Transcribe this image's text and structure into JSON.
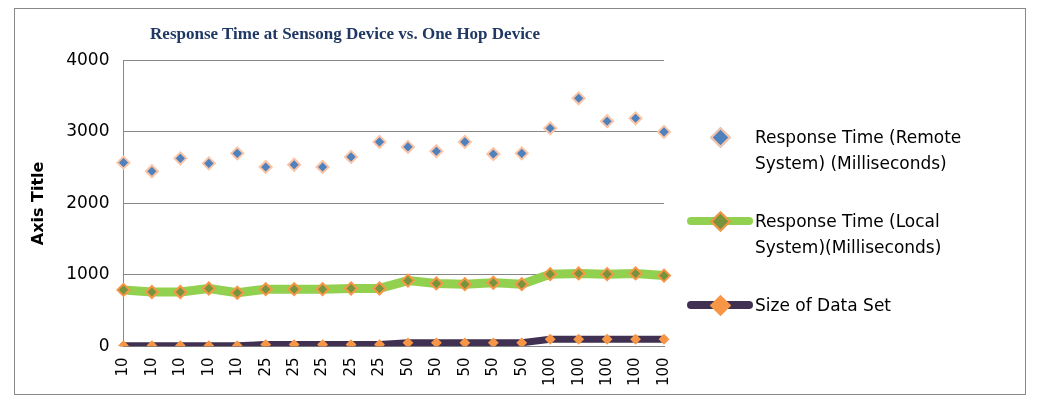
{
  "chart_data": {
    "type": "line",
    "title": "Response Time at Sensong Device vs. One Hop Device",
    "ylabel": "Axis Title",
    "categories": [
      "10",
      "10",
      "10",
      "10",
      "10",
      "25",
      "25",
      "25",
      "25",
      "25",
      "50",
      "50",
      "50",
      "50",
      "50",
      "100",
      "100",
      "100",
      "100",
      "100"
    ],
    "series": [
      {
        "name": "Response Time (Remote System) (Milliseconds)",
        "type": "scatter",
        "color": "#4f81bd",
        "values": [
          2570,
          2450,
          2630,
          2560,
          2700,
          2510,
          2540,
          2510,
          2650,
          2860,
          2790,
          2730,
          2860,
          2690,
          2700,
          3050,
          3470,
          3150,
          3190,
          3000
        ]
      },
      {
        "name": "Response Time (Local System)(Milliseconds)",
        "type": "line",
        "color": "#92d050",
        "values": [
          790,
          760,
          760,
          810,
          750,
          800,
          800,
          800,
          810,
          810,
          920,
          880,
          870,
          890,
          870,
          1010,
          1020,
          1010,
          1020,
          990
        ]
      },
      {
        "name": "Size of Data Set",
        "type": "line",
        "color": "#403152",
        "values": [
          10,
          10,
          10,
          10,
          10,
          25,
          25,
          25,
          25,
          25,
          50,
          50,
          50,
          50,
          50,
          100,
          100,
          100,
          100,
          100
        ]
      }
    ],
    "ylim": [
      0,
      4000
    ],
    "yticks": [
      0,
      1000,
      2000,
      3000,
      4000
    ],
    "grid": "y",
    "legend": "right",
    "marker": "diamond",
    "line_style": "solid"
  }
}
